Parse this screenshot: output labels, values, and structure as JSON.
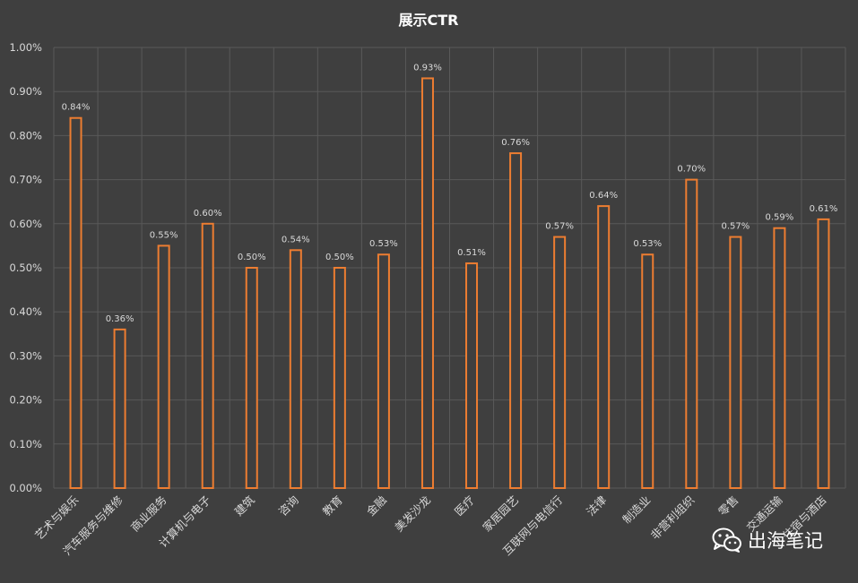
{
  "chart_data": {
    "type": "bar",
    "title": "展示CTR",
    "xlabel": "",
    "ylabel": "",
    "ylim": [
      0,
      1.0
    ],
    "yticks": [
      "0.00%",
      "0.10%",
      "0.20%",
      "0.30%",
      "0.40%",
      "0.50%",
      "0.60%",
      "0.70%",
      "0.80%",
      "0.90%",
      "1.00%"
    ],
    "categories": [
      "艺术与娱乐",
      "汽车服务与维修",
      "商业服务",
      "计算机与电子",
      "建筑",
      "咨询",
      "教育",
      "金融",
      "美发沙龙",
      "医疗",
      "家居园艺",
      "互联网与电信行",
      "法律",
      "制造业",
      "非营利组织",
      "零售",
      "交通运输",
      "住宿与酒店"
    ],
    "values": [
      0.84,
      0.36,
      0.55,
      0.6,
      0.5,
      0.54,
      0.5,
      0.53,
      0.93,
      0.51,
      0.76,
      0.57,
      0.64,
      0.53,
      0.7,
      0.57,
      0.59,
      0.61
    ],
    "data_labels": [
      "0.84%",
      "0.36%",
      "0.55%",
      "0.60%",
      "0.50%",
      "0.54%",
      "0.50%",
      "0.53%",
      "0.93%",
      "0.51%",
      "0.76%",
      "0.57%",
      "0.64%",
      "0.53%",
      "0.70%",
      "0.57%",
      "0.59%",
      "0.61%"
    ],
    "grid": true,
    "legend": "none",
    "colors": {
      "background": "#3f3f3f",
      "bar_stroke": "#ed7d31",
      "bar_fill": "#3f3f3f",
      "grid": "#595959",
      "text": "#d9d9d9",
      "title": "#ffffff"
    }
  },
  "watermark": {
    "icon": "wechat-icon",
    "text": "出海笔记"
  }
}
